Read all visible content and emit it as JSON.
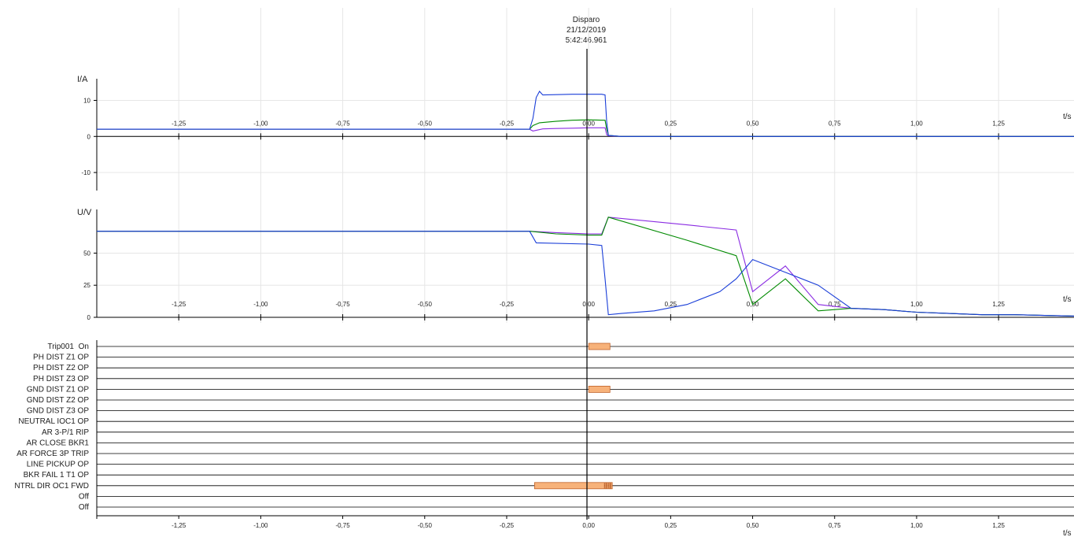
{
  "trigger": {
    "label": "Disparo",
    "date": "21/12/2019",
    "time": "5:42:46.961"
  },
  "x_axis": {
    "unit": "t/s",
    "min": -1.5,
    "max": 1.48,
    "ticks": [
      -1.25,
      -1.0,
      -0.75,
      -0.5,
      -0.25,
      0.0,
      0.25,
      0.5,
      0.75,
      1.0,
      1.25
    ],
    "tick_labels": [
      "-1,25",
      "-1,00",
      "-0,75",
      "-0,50",
      "-0,25",
      "0,00",
      "0,25",
      "0,50",
      "0,75",
      "1,00",
      "1,25"
    ]
  },
  "chart_data": [
    {
      "type": "line",
      "ylabel": "I/A",
      "xlabel": "t/s",
      "ylim": [
        -15,
        16
      ],
      "yticks": [
        10,
        0,
        -10
      ],
      "ytick_labels": [
        "10",
        "0",
        "-10"
      ],
      "grid": true,
      "series": [
        {
          "color": "#8a2be2",
          "x": [
            -1.5,
            -0.18,
            -0.17,
            -0.14,
            -0.1,
            -0.05,
            0.0,
            0.05,
            0.055,
            0.06,
            0.1,
            1.48
          ],
          "y": [
            2.0,
            2.0,
            1.5,
            2.1,
            2.2,
            2.3,
            2.4,
            2.4,
            0.5,
            0.2,
            0.0,
            0.0
          ]
        },
        {
          "color": "#008a00",
          "x": [
            -1.5,
            -0.18,
            -0.17,
            -0.15,
            -0.1,
            -0.05,
            0.0,
            0.05,
            0.055,
            0.06,
            0.1,
            1.48
          ],
          "y": [
            2.0,
            2.0,
            3.0,
            3.8,
            4.2,
            4.5,
            4.6,
            4.5,
            2.0,
            0.3,
            0.0,
            0.0
          ]
        },
        {
          "color": "#1a3ed8",
          "x": [
            -1.5,
            -0.18,
            -0.17,
            -0.16,
            -0.15,
            -0.14,
            -0.1,
            -0.05,
            0.0,
            0.04,
            0.05,
            0.055,
            0.06,
            0.1,
            1.48
          ],
          "y": [
            2.0,
            2.0,
            5.0,
            10.8,
            12.5,
            11.5,
            11.6,
            11.7,
            11.7,
            11.7,
            11.5,
            4.0,
            0.3,
            0.0,
            0.0
          ]
        }
      ]
    },
    {
      "type": "line",
      "ylabel": "U/V",
      "xlabel": "t/s",
      "ylim": [
        0,
        84
      ],
      "yticks": [
        50,
        25,
        0
      ],
      "ytick_labels": [
        "50",
        "25",
        "0"
      ],
      "grid": true,
      "series": [
        {
          "color": "#8a2be2",
          "x": [
            -1.5,
            -0.18,
            -0.1,
            0.0,
            0.04,
            0.06,
            0.3,
            0.45,
            0.5,
            0.6,
            0.7,
            0.8,
            0.9,
            1.0,
            1.1,
            1.2,
            1.3,
            1.48
          ],
          "y": [
            67,
            67,
            66,
            65,
            65,
            78,
            72,
            68,
            20,
            40,
            10,
            7,
            6,
            4,
            3,
            2,
            2,
            1
          ]
        },
        {
          "color": "#008a00",
          "x": [
            -1.5,
            -0.18,
            -0.1,
            0.0,
            0.04,
            0.06,
            0.3,
            0.45,
            0.5,
            0.6,
            0.7,
            0.8,
            0.9,
            1.0,
            1.1,
            1.2,
            1.3,
            1.48
          ],
          "y": [
            67,
            67,
            65,
            64,
            64,
            78,
            60,
            48,
            10,
            30,
            5,
            7,
            6,
            4,
            3,
            2,
            2,
            1
          ]
        },
        {
          "color": "#1a3ed8",
          "x": [
            -1.5,
            -0.18,
            -0.16,
            0.0,
            0.04,
            0.05,
            0.06,
            0.1,
            0.2,
            0.3,
            0.4,
            0.45,
            0.5,
            0.6,
            0.7,
            0.8,
            0.9,
            1.0,
            1.1,
            1.2,
            1.3,
            1.48
          ],
          "y": [
            67,
            67,
            58,
            57,
            56,
            30,
            2,
            3,
            5,
            10,
            20,
            30,
            45,
            35,
            25,
            7,
            6,
            4,
            3,
            2,
            2,
            1
          ]
        }
      ]
    },
    {
      "type": "table",
      "title": "",
      "channels": [
        {
          "label": "Trip001",
          "state": "On",
          "intervals": [
            [
              0.0,
              0.065
            ]
          ]
        },
        {
          "label": "PH DIST Z1 OP",
          "intervals": []
        },
        {
          "label": "PH DIST Z2 OP",
          "intervals": []
        },
        {
          "label": "PH DIST Z3 OP",
          "intervals": []
        },
        {
          "label": "GND DIST Z1 OP",
          "intervals": [
            [
              0.0,
              0.065
            ]
          ]
        },
        {
          "label": "GND DIST Z2 OP",
          "intervals": []
        },
        {
          "label": "GND DIST Z3 OP",
          "intervals": []
        },
        {
          "label": "NEUTRAL IOC1 OP",
          "intervals": []
        },
        {
          "label": "AR 3-P/1 RIP",
          "intervals": []
        },
        {
          "label": "AR CLOSE BKR1",
          "intervals": []
        },
        {
          "label": "AR FORCE 3P TRIP",
          "intervals": []
        },
        {
          "label": "LINE PICKUP OP",
          "intervals": []
        },
        {
          "label": "BKR FAIL 1 T1 OP",
          "intervals": []
        },
        {
          "label": "NTRL DIR OC1 FWD",
          "intervals": [
            [
              -0.165,
              0.048
            ],
            [
              0.05,
              0.054
            ],
            [
              0.056,
              0.06
            ],
            [
              0.062,
              0.066
            ],
            [
              0.068,
              0.072
            ]
          ]
        },
        {
          "label": "Off",
          "intervals": []
        },
        {
          "label": "Off",
          "intervals": []
        }
      ]
    }
  ],
  "colors": {
    "bar_fill": "#f7b27a",
    "bar_stroke": "#c0632a",
    "axis": "#000000",
    "grid": "#e6e6e6"
  }
}
